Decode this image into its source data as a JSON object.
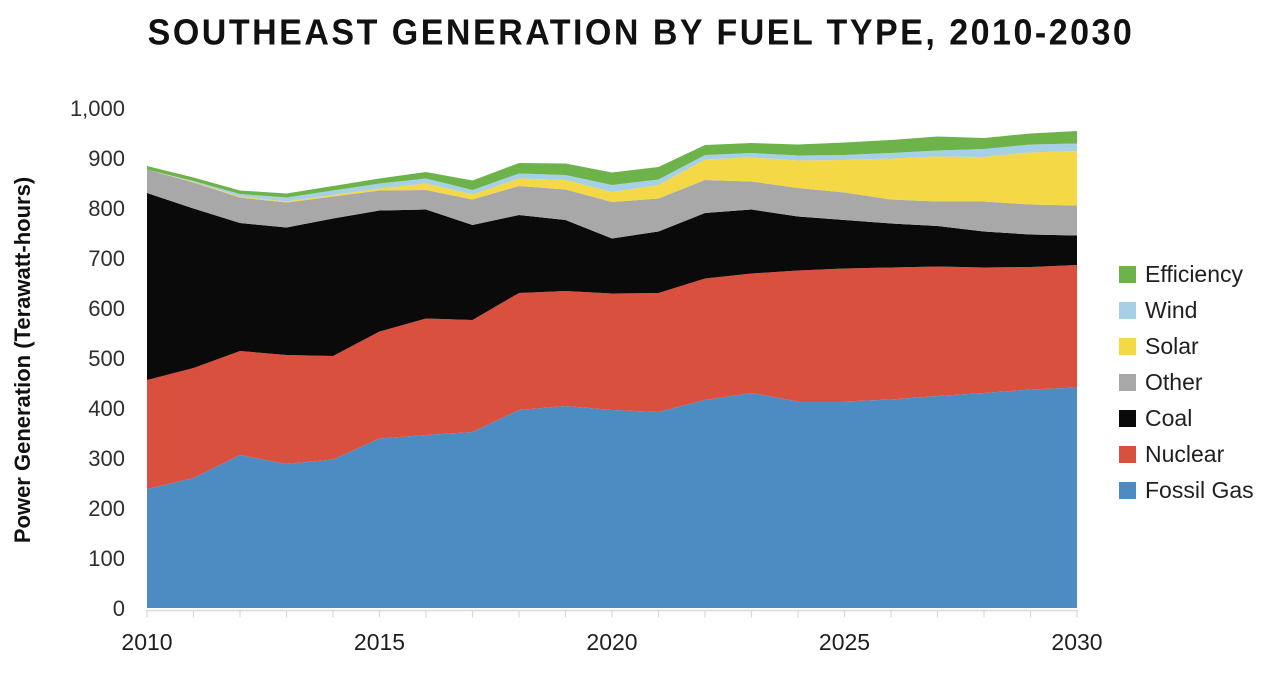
{
  "title": "SOUTHEAST GENERATION BY FUEL TYPE, 2010-2030",
  "chart_data": {
    "type": "area",
    "stacked": true,
    "title": "SOUTHEAST GENERATION BY FUEL TYPE, 2010-2030",
    "xlabel": "",
    "ylabel": "Power Generation (Terawatt-hours)",
    "xlim": [
      2010,
      2030
    ],
    "ylim": [
      0,
      1000
    ],
    "grid": false,
    "legend_position": "right",
    "axis_color": "#D9D9D9",
    "x": [
      2010,
      2011,
      2012,
      2013,
      2014,
      2015,
      2016,
      2017,
      2018,
      2019,
      2020,
      2021,
      2022,
      2023,
      2024,
      2025,
      2026,
      2027,
      2028,
      2029,
      2030
    ],
    "xtick_values": [
      2010,
      2015,
      2020,
      2025,
      2030
    ],
    "xtick_labels": [
      "2010",
      "2015",
      "2020",
      "2025",
      "2030"
    ],
    "ytick_values": [
      0,
      100,
      200,
      300,
      400,
      500,
      600,
      700,
      800,
      900,
      1000
    ],
    "ytick_labels": [
      "0",
      "100",
      "200",
      "300",
      "400",
      "500",
      "600",
      "700",
      "800",
      "900",
      "1,000"
    ],
    "series": [
      {
        "name": "Fossil Gas",
        "color": "#4C8CC2",
        "values": [
          238,
          260,
          306,
          288,
          297,
          339,
          346,
          352,
          396,
          404,
          396,
          392,
          416,
          430,
          413,
          413,
          417,
          424,
          430,
          437,
          441
        ]
      },
      {
        "name": "Nuclear",
        "color": "#D9513E",
        "values": [
          218,
          220,
          208,
          218,
          207,
          214,
          233,
          224,
          234,
          230,
          233,
          238,
          243,
          239,
          262,
          266,
          264,
          259,
          251,
          245,
          245
        ]
      },
      {
        "name": "Coal",
        "color": "#0A0A0A",
        "values": [
          374,
          319,
          256,
          255,
          275,
          242,
          218,
          190,
          156,
          142,
          110,
          123,
          131,
          128,
          108,
          97,
          88,
          81,
          72,
          65,
          59
        ]
      },
      {
        "name": "Other",
        "color": "#A8A8A8",
        "values": [
          47,
          52,
          51,
          50,
          44,
          40,
          39,
          51,
          58,
          61,
          73,
          66,
          66,
          56,
          57,
          55,
          48,
          49,
          60,
          60,
          60
        ]
      },
      {
        "name": "Solar",
        "color": "#F5D845",
        "values": [
          0,
          1,
          2,
          2,
          3,
          4,
          13,
          10,
          15,
          19,
          20,
          27,
          41,
          48,
          55,
          65,
          82,
          90,
          89,
          104,
          109
        ]
      },
      {
        "name": "Wind",
        "color": "#A6D0E6",
        "values": [
          0,
          2,
          5,
          8,
          9,
          10,
          10,
          9,
          10,
          10,
          14,
          11,
          9,
          9,
          10,
          10,
          11,
          12,
          16,
          16,
          15
        ]
      },
      {
        "name": "Efficiency",
        "color": "#6DB34A",
        "values": [
          7,
          7,
          7,
          8,
          9,
          10,
          13,
          19,
          21,
          23,
          25,
          25,
          20,
          20,
          22,
          25,
          26,
          28,
          22,
          22,
          25
        ]
      }
    ],
    "legend_order_top_to_bottom": [
      "Efficiency",
      "Wind",
      "Solar",
      "Other",
      "Coal",
      "Nuclear",
      "Fossil Gas"
    ]
  }
}
